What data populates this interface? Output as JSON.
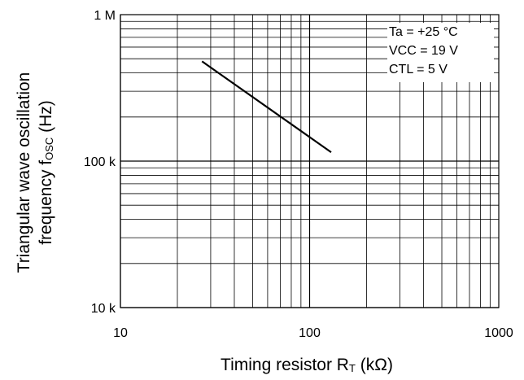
{
  "chart_data": {
    "type": "line",
    "x_scale": "log",
    "y_scale": "log",
    "xlim": [
      10,
      1000
    ],
    "ylim": [
      10000,
      1000000
    ],
    "grid": true,
    "x_ticks": [
      {
        "value": 10,
        "label": "10"
      },
      {
        "value": 100,
        "label": "100"
      },
      {
        "value": 1000,
        "label": "1000"
      }
    ],
    "y_ticks": [
      {
        "value": 10000,
        "label": "10 k"
      },
      {
        "value": 100000,
        "label": "100 k"
      },
      {
        "value": 1000000,
        "label": "1 M"
      }
    ],
    "xlabel": {
      "main": "Timing resistor R",
      "sub": "T",
      "unit": " (kΩ)"
    },
    "ylabel": {
      "line1": "Triangular wave oscillation",
      "line2_main": "frequency f",
      "line2_sub": "OSC",
      "line2_unit": " (Hz)"
    },
    "annotations": [
      "Ta = +25 °C",
      "VCC = 19 V",
      "CTL = 5 V"
    ],
    "series": [
      {
        "color": "#000000",
        "x": [
          27,
          130
        ],
        "y": [
          480000,
          115000
        ]
      }
    ]
  }
}
